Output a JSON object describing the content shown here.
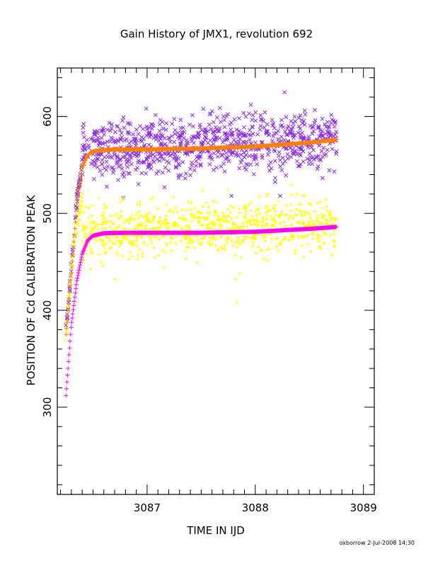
{
  "chart_data": {
    "type": "scatter",
    "title": "Gain History of JMX1, revolution 692",
    "xlabel": "TIME IN IJD",
    "ylabel": "POSITION OF Cd CALIBRATION PEAK",
    "xlim": [
      3086.17,
      3089.1
    ],
    "ylim": [
      210,
      650
    ],
    "x_ticks": [
      3087,
      3088,
      3089
    ],
    "y_ticks": [
      300,
      400,
      500,
      600
    ],
    "grid": false,
    "legend": "none",
    "footer": "oxborrow  2-Jul-2008 14:30",
    "series": [
      {
        "marker": "x",
        "color": "#8a2be2",
        "description_points": "noisy scatter",
        "x_range": [
          3086.25,
          3088.75
        ],
        "plateau_center": 566,
        "plateau_slope_per_day": 4,
        "spread": 15,
        "start_value": 378,
        "rise_end_x": 3086.4,
        "rise_end_value": 540,
        "outliers": [
          [
            3088.27,
            625
          ],
          [
            3086.78,
            516
          ],
          [
            3087.78,
            518
          ],
          [
            3088.23,
            518
          ],
          [
            3087.16,
            527
          ],
          [
            3087.58,
            602
          ]
        ]
      },
      {
        "marker": "+",
        "color": "#ffff00",
        "x_range": [
          3086.25,
          3088.75
        ],
        "plateau_center": 480,
        "plateau_slope_per_day": 4,
        "spread": 14,
        "start_value": 370,
        "rise_end_x": 3086.4,
        "rise_end_value": 450,
        "outliers": [
          [
            3087.83,
            408
          ],
          [
            3087.82,
            432
          ],
          [
            3087.86,
            438
          ],
          [
            3086.7,
            432
          ],
          [
            3087.55,
            511
          ],
          [
            3086.62,
            460
          ]
        ]
      },
      {
        "marker": "+",
        "color": "#ff8000",
        "description_points": "fitted gain curve",
        "x": [
          3086.25,
          3086.3,
          3086.35,
          3086.4,
          3086.45,
          3086.5,
          3086.6,
          3086.8,
          3087.0,
          3087.5,
          3088.0,
          3088.5,
          3088.75
        ],
        "y": [
          375,
          440,
          510,
          548,
          560,
          564,
          565.5,
          566,
          566,
          567,
          569,
          573,
          576
        ]
      },
      {
        "marker": "+",
        "color": "#ff00ff",
        "x": [
          3086.25,
          3086.3,
          3086.35,
          3086.4,
          3086.45,
          3086.5,
          3086.6,
          3086.8,
          3087.0,
          3087.5,
          3088.0,
          3088.5,
          3088.75
        ],
        "y": [
          312,
          385,
          430,
          458,
          472,
          477,
          479.5,
          480,
          480,
          480,
          481,
          484,
          486
        ]
      }
    ]
  }
}
